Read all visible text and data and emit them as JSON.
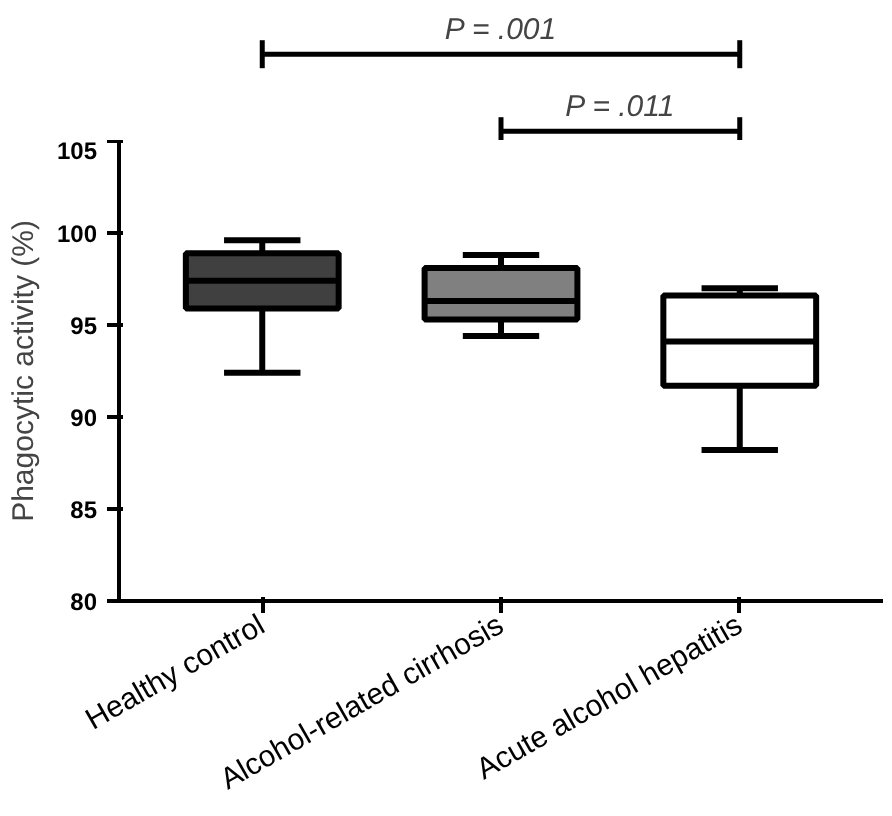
{
  "chart_data": {
    "type": "box",
    "ylabel": "Phagocytic activity (%)",
    "categories": [
      "Healthy control",
      "Alcohol-related cirrhosis",
      "Acute alcohol hepatitis"
    ],
    "colors": [
      "#404040",
      "#808080",
      "#ffffff"
    ],
    "boxes": [
      {
        "low": 92.4,
        "q1": 95.9,
        "median": 97.4,
        "q3": 98.9,
        "high": 99.6
      },
      {
        "low": 94.4,
        "q1": 95.3,
        "median": 96.3,
        "q3": 98.1,
        "high": 98.8
      },
      {
        "low": 88.2,
        "q1": 91.7,
        "median": 94.1,
        "q3": 96.6,
        "high": 97.0
      }
    ],
    "ylim": [
      80,
      105
    ],
    "yticks": [
      80,
      85,
      90,
      95,
      100,
      105
    ],
    "grid": false,
    "annotations": [
      "P = .001",
      "P = .011"
    ]
  }
}
